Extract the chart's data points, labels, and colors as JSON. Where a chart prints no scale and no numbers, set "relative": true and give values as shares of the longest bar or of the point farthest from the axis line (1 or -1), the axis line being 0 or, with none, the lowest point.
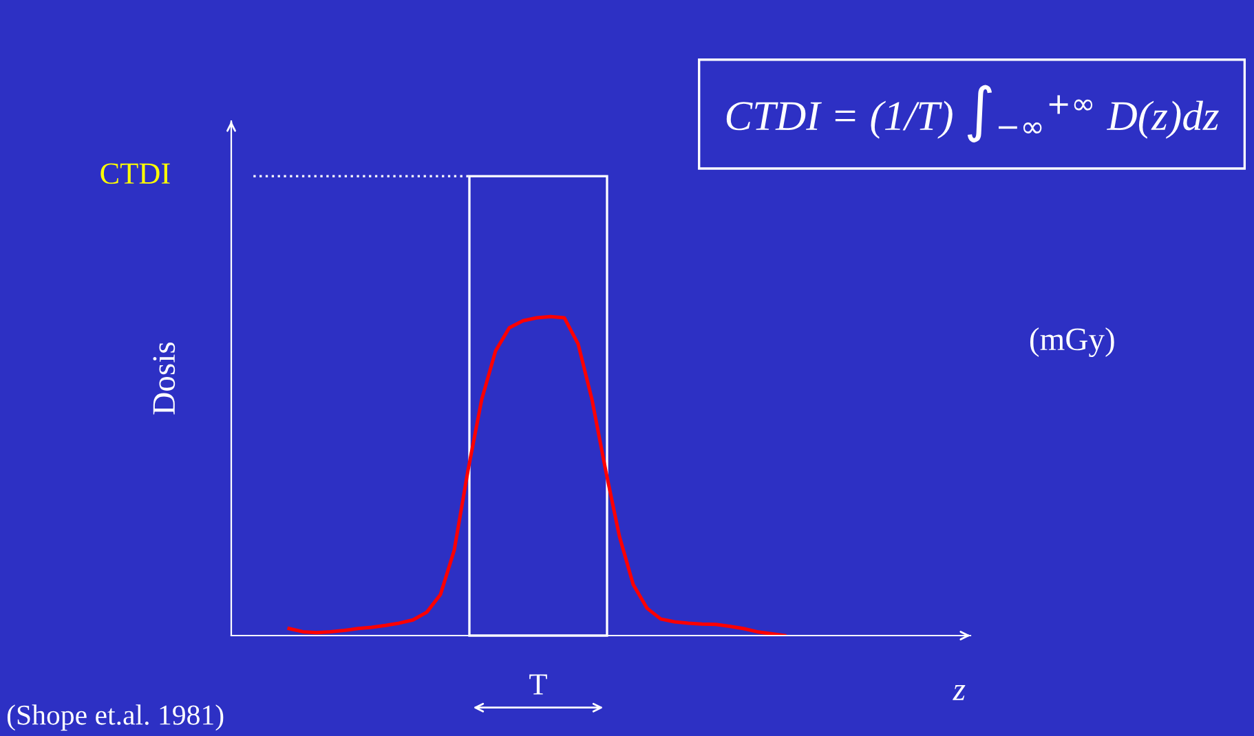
{
  "chart_data": {
    "type": "line",
    "relative": true,
    "ylabel": "Dosis",
    "xlabel": "z",
    "tick_labels": false,
    "categories": [
      null,
      null,
      null,
      null,
      null,
      null,
      null,
      null,
      null,
      null,
      null,
      null,
      null,
      null,
      null,
      null,
      null,
      null,
      null,
      null,
      null,
      null,
      null,
      null,
      null,
      null,
      null,
      null,
      null,
      null,
      null,
      null,
      null,
      null,
      null,
      null,
      null,
      null,
      null,
      null,
      null,
      null,
      null,
      null,
      null,
      null,
      null,
      null,
      null,
      null,
      null,
      null,
      null,
      null
    ],
    "series": [
      {
        "color": "#ff0000",
        "values": [
          null,
          null,
          null,
          null,
          0.022,
          0.012,
          0.009,
          0.012,
          0.016,
          0.022,
          0.026,
          0.032,
          0.039,
          0.049,
          0.073,
          0.129,
          0.268,
          0.518,
          0.741,
          0.892,
          0.965,
          0.987,
          0.996,
          1.0,
          0.996,
          0.914,
          0.741,
          0.518,
          0.311,
          0.16,
          0.086,
          0.052,
          0.043,
          0.039,
          0.036,
          0.035,
          0.029,
          0.022,
          0.012,
          0.006,
          0.0,
          null,
          null,
          null,
          null,
          null,
          null,
          null,
          null,
          null,
          null,
          null,
          null,
          null
        ]
      }
    ],
    "ref_lines": [
      {
        "axis": "y",
        "value": 1.44,
        "label": "CTDI",
        "color": "#ffffff",
        "line_style": "dotted"
      }
    ],
    "annotations": [
      "CTDI = (1/T) ∫$_{−∞}$$^{+∞}$ D(z)dz",
      "(mGy)",
      "(Shope et.al. 1981)",
      "T"
    ]
  }
}
